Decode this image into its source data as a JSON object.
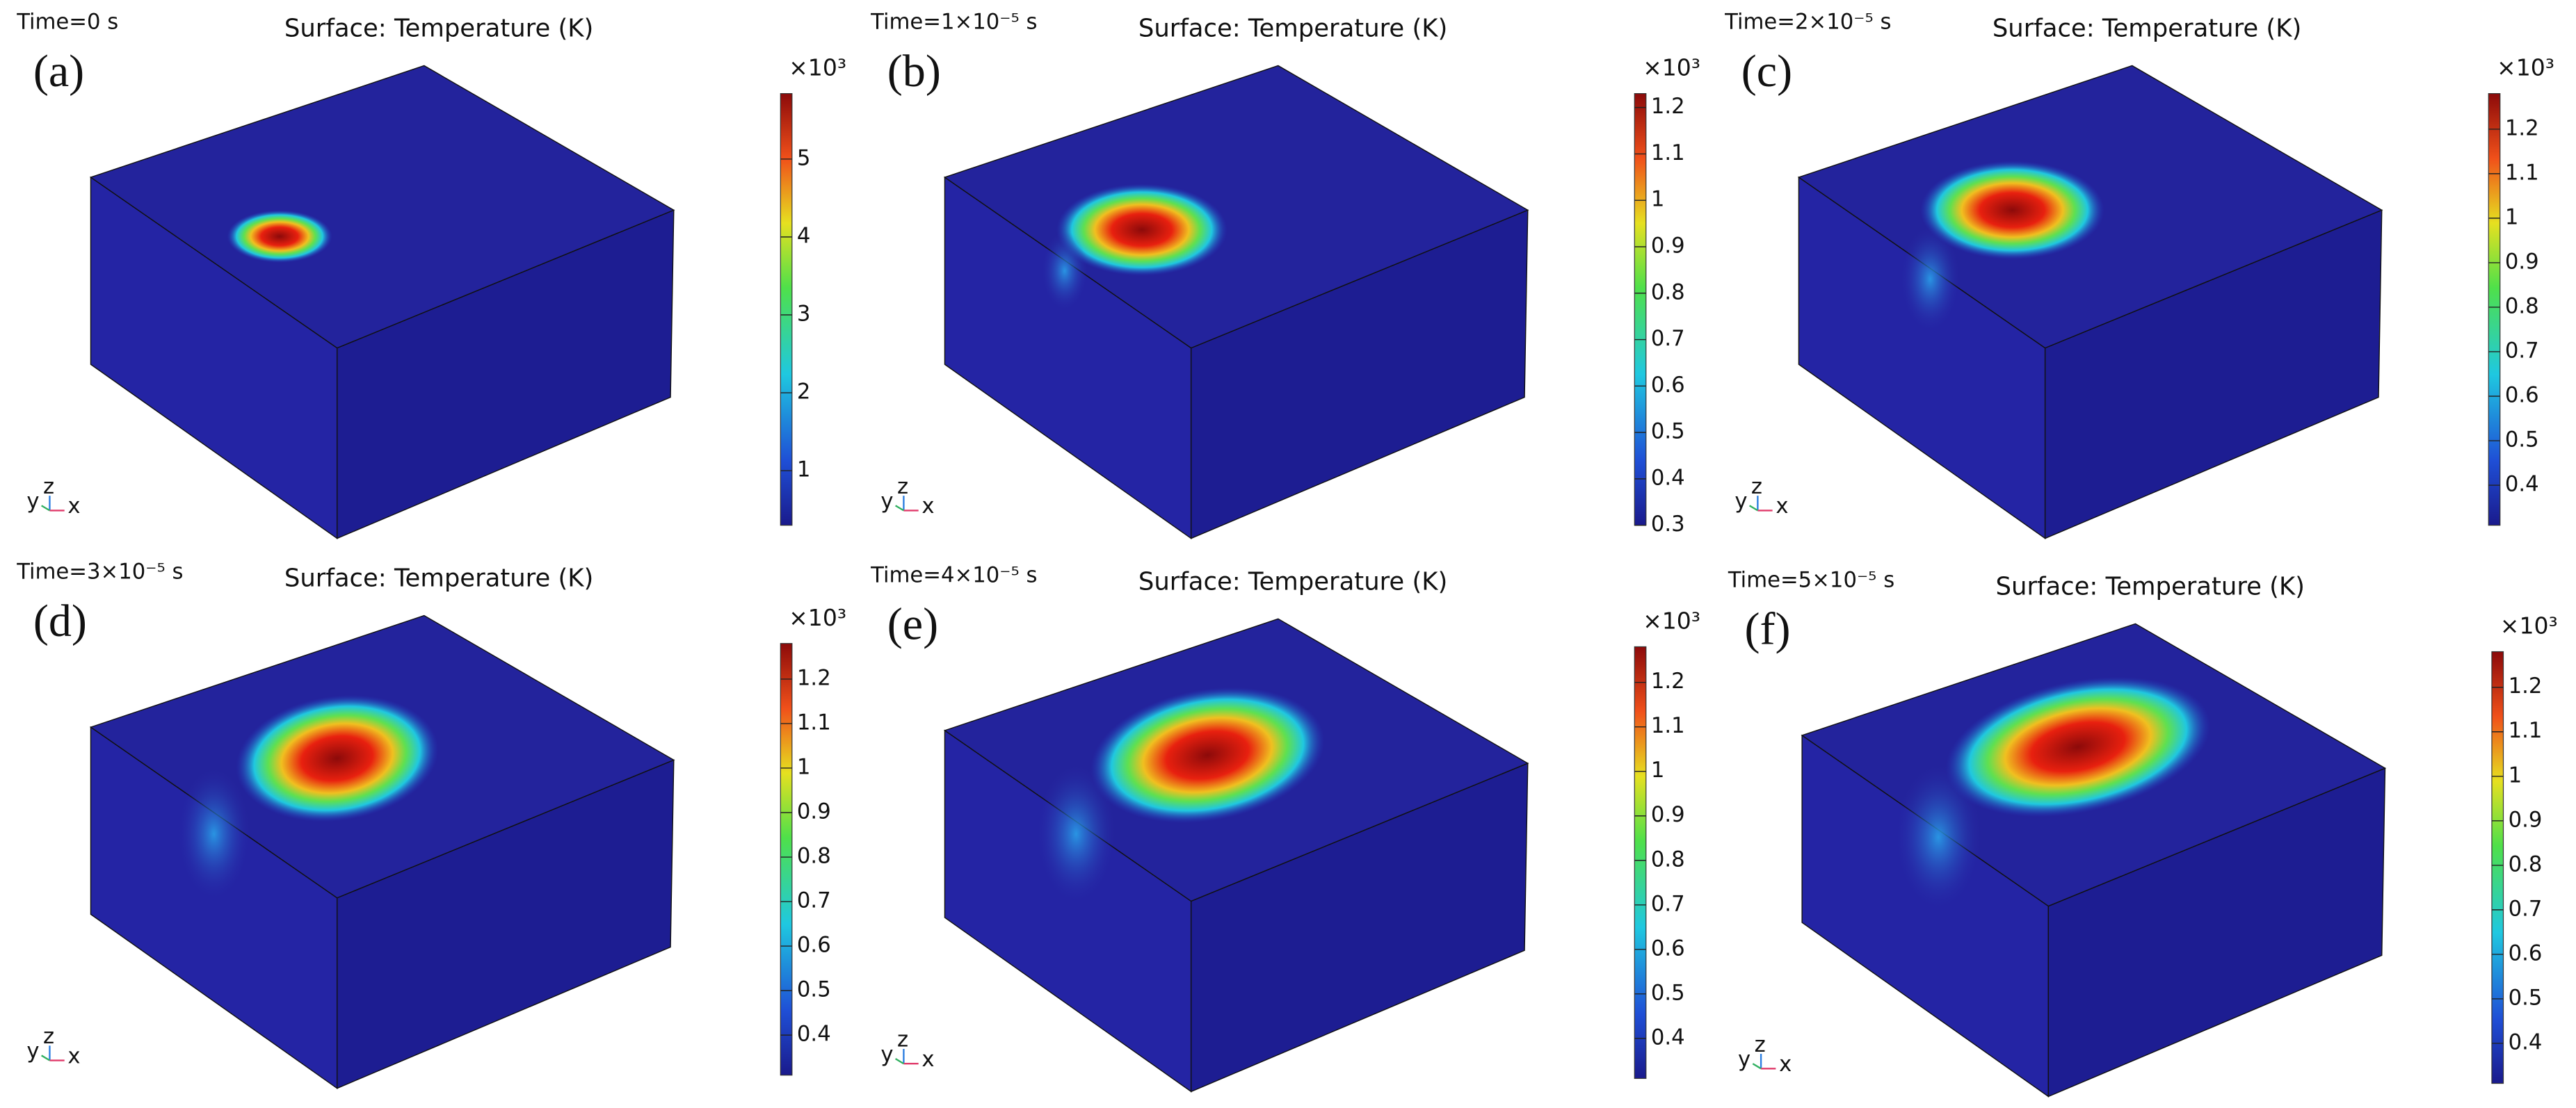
{
  "panels": [
    {
      "letter": "(a)",
      "time": "Time=0 s",
      "title": "Surface: Temperature (K)",
      "colorbar": {
        "multiplier": "×10³",
        "range": [
          0.3,
          5.84
        ],
        "ticks": [
          1,
          2,
          3,
          4,
          5
        ]
      },
      "axes": {
        "y": "y",
        "z": "z",
        "x": "x"
      }
    },
    {
      "letter": "(b)",
      "time": "Time=1×10⁻⁵ s",
      "title": "Surface: Temperature (K)",
      "colorbar": {
        "multiplier": "×10³",
        "range": [
          0.3,
          1.23
        ],
        "ticks": [
          0.3,
          0.4,
          0.5,
          0.6,
          0.7,
          0.8,
          0.9,
          1,
          1.1,
          1.2
        ]
      },
      "axes": {
        "y": "y",
        "z": "z",
        "x": "x"
      }
    },
    {
      "letter": "(c)",
      "time": "Time=2×10⁻⁵ s",
      "title": "Surface: Temperature (K)",
      "colorbar": {
        "multiplier": "×10³",
        "range": [
          0.31,
          1.28
        ],
        "ticks": [
          0.4,
          0.5,
          0.6,
          0.7,
          0.8,
          0.9,
          1,
          1.1,
          1.2
        ]
      },
      "axes": {
        "y": "y",
        "z": "z",
        "x": "x"
      }
    },
    {
      "letter": "(d)",
      "time": "Time=3×10⁻⁵ s",
      "title": "Surface: Temperature (K)",
      "colorbar": {
        "multiplier": "×10³",
        "range": [
          0.31,
          1.28
        ],
        "ticks": [
          0.4,
          0.5,
          0.6,
          0.7,
          0.8,
          0.9,
          1,
          1.1,
          1.2
        ]
      },
      "axes": {
        "y": "y",
        "z": "z",
        "x": "x"
      }
    },
    {
      "letter": "(e)",
      "time": "Time=4×10⁻⁵ s",
      "title": "Surface: Temperature (K)",
      "colorbar": {
        "multiplier": "×10³",
        "range": [
          0.31,
          1.28
        ],
        "ticks": [
          0.4,
          0.5,
          0.6,
          0.7,
          0.8,
          0.9,
          1,
          1.1,
          1.2
        ]
      },
      "axes": {
        "y": "y",
        "z": "z",
        "x": "x"
      }
    },
    {
      "letter": "(f)",
      "time": "Time=5×10⁻⁵ s",
      "title": "Surface: Temperature (K)",
      "colorbar": {
        "multiplier": "×10³",
        "range": [
          0.31,
          1.28
        ],
        "ticks": [
          0.4,
          0.5,
          0.6,
          0.7,
          0.8,
          0.9,
          1,
          1.1,
          1.2
        ]
      },
      "axes": {
        "y": "y",
        "z": "z",
        "x": "x"
      }
    }
  ]
}
